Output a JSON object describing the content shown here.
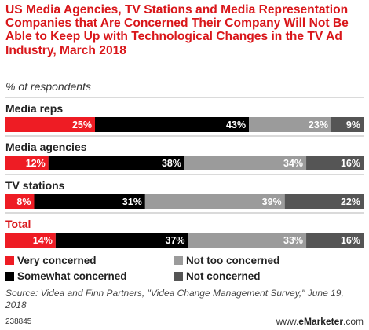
{
  "title": "US Media Agencies, TV Stations and Media Representation Companies that Are Concerned Their Company Will Not Be Able to Keep Up with Technological Changes in the TV Ad Industry, March 2018",
  "subtitle": "% of respondents",
  "source": "Source: Videa and Finn Partners, \"Videa Change Management Survey,\" June 19, 2018",
  "footer": {
    "id": "238845",
    "brand_prefix": "www.",
    "brand_name": "eMarketer",
    "brand_suffix": ".com"
  },
  "colors": {
    "very_concerned": "#ee1c24",
    "somewhat_concerned": "#000000",
    "not_too_concerned": "#9b9b9b",
    "not_concerned": "#555555",
    "total_label": "#d9171b"
  },
  "chart_data": {
    "type": "bar",
    "orientation": "horizontal",
    "stacked": true,
    "unit": "%",
    "categories": [
      "Media reps",
      "Media agencies",
      "TV stations",
      "Total"
    ],
    "series": [
      {
        "name": "Very concerned",
        "values": [
          25,
          12,
          8,
          14
        ]
      },
      {
        "name": "Somewhat concerned",
        "values": [
          43,
          38,
          31,
          37
        ]
      },
      {
        "name": "Not too concerned",
        "values": [
          23,
          34,
          39,
          33
        ]
      },
      {
        "name": "Not concerned",
        "values": [
          9,
          16,
          22,
          16
        ]
      }
    ],
    "legend_placement": "bottom",
    "grid": false
  }
}
